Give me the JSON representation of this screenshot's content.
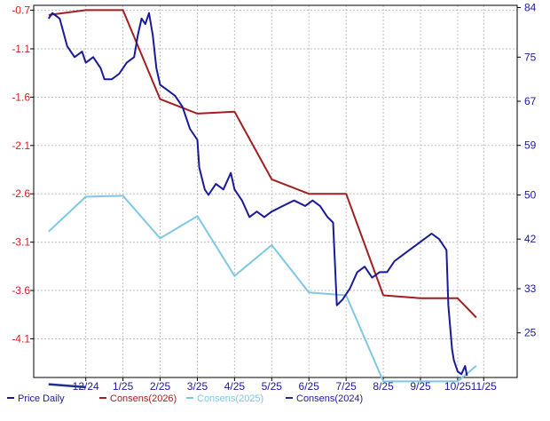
{
  "chart_data": {
    "type": "line",
    "title": "",
    "xlabel": "",
    "ylabel": "",
    "grid": true,
    "legend_position": "bottom",
    "colors": {
      "price": "#1a1a99",
      "consens2026": "#a31f1f",
      "consens2025": "#7ec8e3",
      "consens2024": "#1f2f8f",
      "grid": "#bfbfbf",
      "frame": "#000000",
      "left_tick_text": "#cc2222",
      "right_tick_text": "#1a1a99",
      "x_tick_text": "#1a1a99"
    },
    "x_axis": {
      "tick_labels": [
        "12/24",
        "1/25",
        "2/25",
        "3/25",
        "4/25",
        "5/25",
        "6/25",
        "7/25",
        "8/25",
        "9/25",
        "10/25",
        "11/25"
      ],
      "tick_positions": [
        1,
        2,
        3,
        4,
        5,
        6,
        7,
        8,
        9,
        10,
        11,
        11.7
      ],
      "range": [
        -0.4,
        12.6
      ]
    },
    "y_left": {
      "label": "",
      "ticks": [
        -0.7,
        -1.1,
        -1.6,
        -2.1,
        -2.6,
        -3.1,
        -3.6,
        -4.1
      ],
      "range": [
        -4.5,
        -0.65
      ]
    },
    "y_right": {
      "label": "",
      "ticks": [
        84,
        75,
        67,
        59,
        50,
        42,
        33,
        25
      ],
      "range": [
        16.9,
        84.4
      ]
    },
    "series": [
      {
        "name": "Price Daily",
        "axis": "right",
        "points": [
          [
            0,
            82
          ],
          [
            0.1,
            83
          ],
          [
            0.3,
            82
          ],
          [
            0.5,
            77
          ],
          [
            0.7,
            75
          ],
          [
            0.9,
            76
          ],
          [
            1.0,
            74
          ],
          [
            1.2,
            75
          ],
          [
            1.4,
            73
          ],
          [
            1.5,
            71
          ],
          [
            1.7,
            71
          ],
          [
            1.9,
            72
          ],
          [
            2.1,
            74
          ],
          [
            2.3,
            75
          ],
          [
            2.4,
            79
          ],
          [
            2.5,
            82
          ],
          [
            2.6,
            81
          ],
          [
            2.7,
            83
          ],
          [
            2.8,
            79
          ],
          [
            2.9,
            73
          ],
          [
            3.0,
            70
          ],
          [
            3.2,
            69
          ],
          [
            3.4,
            68
          ],
          [
            3.6,
            66
          ],
          [
            3.8,
            62
          ],
          [
            4.0,
            60
          ],
          [
            4.05,
            55
          ],
          [
            4.2,
            51
          ],
          [
            4.3,
            50
          ],
          [
            4.5,
            52
          ],
          [
            4.7,
            51
          ],
          [
            4.9,
            54
          ],
          [
            5.0,
            51
          ],
          [
            5.2,
            49
          ],
          [
            5.4,
            46
          ],
          [
            5.6,
            47
          ],
          [
            5.8,
            46
          ],
          [
            6.0,
            47
          ],
          [
            6.3,
            48
          ],
          [
            6.6,
            49
          ],
          [
            6.9,
            48
          ],
          [
            7.1,
            49
          ],
          [
            7.3,
            48
          ],
          [
            7.5,
            46
          ],
          [
            7.65,
            45
          ],
          [
            7.75,
            30
          ],
          [
            7.9,
            31
          ],
          [
            8.1,
            33
          ],
          [
            8.3,
            36
          ],
          [
            8.5,
            37
          ],
          [
            8.7,
            35
          ],
          [
            8.9,
            36
          ],
          [
            9.1,
            36
          ],
          [
            9.3,
            38
          ],
          [
            9.5,
            39
          ],
          [
            9.7,
            40
          ],
          [
            9.9,
            41
          ],
          [
            10.1,
            42
          ],
          [
            10.3,
            43
          ],
          [
            10.5,
            42
          ],
          [
            10.6,
            41
          ],
          [
            10.7,
            40
          ],
          [
            10.75,
            30
          ],
          [
            10.85,
            22
          ],
          [
            10.9,
            20
          ],
          [
            11.0,
            18
          ],
          [
            11.1,
            17.5
          ],
          [
            11.2,
            19
          ],
          [
            11.25,
            17.2
          ]
        ]
      },
      {
        "name": "Consens(2026)",
        "axis": "left",
        "points": [
          [
            0,
            -0.75
          ],
          [
            1,
            -0.7
          ],
          [
            2,
            -0.7
          ],
          [
            3,
            -1.62
          ],
          [
            4,
            -1.77
          ],
          [
            5,
            -1.75
          ],
          [
            6,
            -2.45
          ],
          [
            7,
            -2.6
          ],
          [
            8,
            -2.6
          ],
          [
            9,
            -3.65
          ],
          [
            10,
            -3.68
          ],
          [
            11,
            -3.68
          ],
          [
            11.5,
            -3.88
          ]
        ]
      },
      {
        "name": "Consens(2025)",
        "axis": "left",
        "points": [
          [
            0,
            -2.99
          ],
          [
            1,
            -2.63
          ],
          [
            2,
            -2.62
          ],
          [
            3,
            -3.06
          ],
          [
            4,
            -2.83
          ],
          [
            5,
            -3.45
          ],
          [
            6,
            -3.13
          ],
          [
            7,
            -3.62
          ],
          [
            8,
            -3.65
          ],
          [
            9,
            -4.54
          ],
          [
            10,
            -4.54
          ],
          [
            11,
            -4.54
          ],
          [
            11.5,
            -4.38
          ]
        ]
      },
      {
        "name": "Consens(2024)",
        "axis": "left",
        "points": [
          [
            0,
            -4.57
          ],
          [
            1,
            -4.6
          ]
        ]
      }
    ]
  }
}
